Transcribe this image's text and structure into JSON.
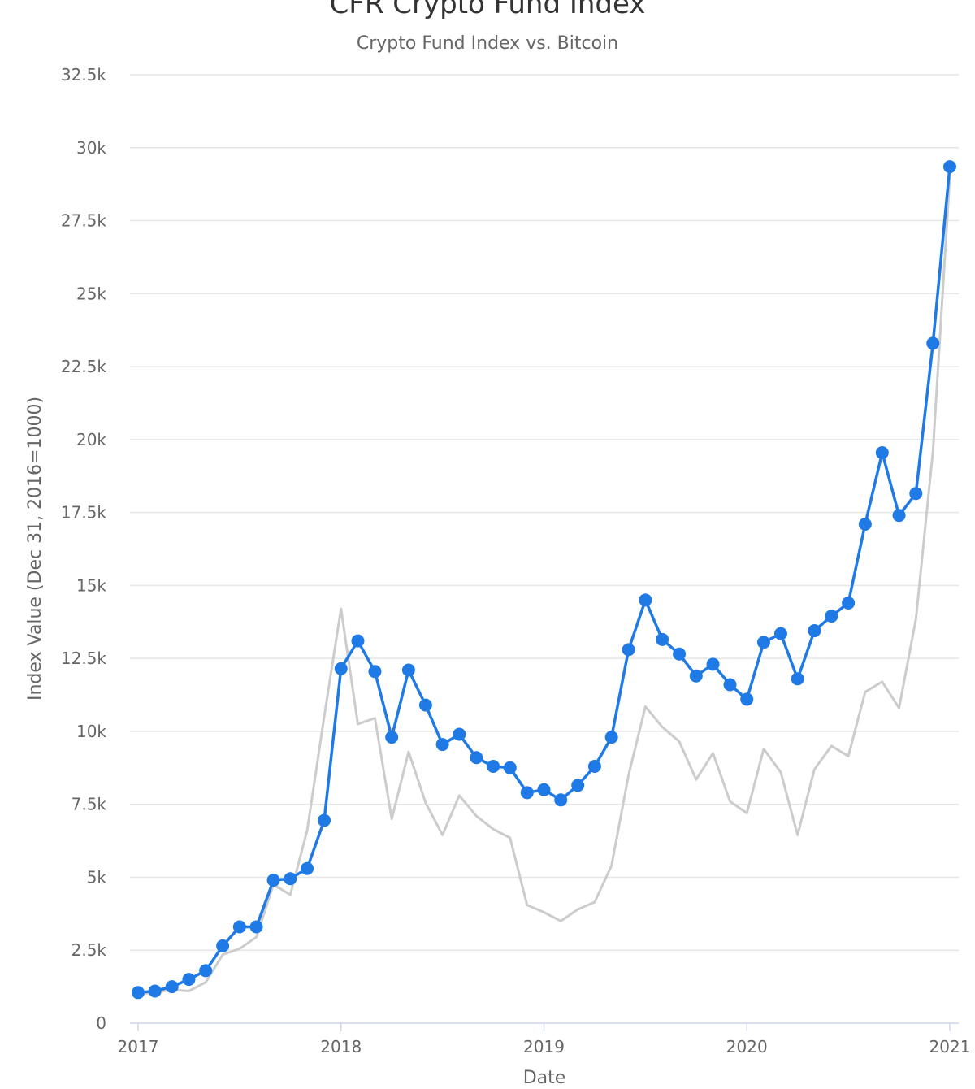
{
  "chart_data": {
    "type": "line",
    "title": "CFR Crypto Fund Index",
    "subtitle": "Crypto Fund Index vs. Bitcoin",
    "xlabel": "Date",
    "ylabel": "Index Value (Dec 31, 2016=1000)",
    "xlim": [
      2017,
      2021
    ],
    "ylim": [
      0,
      32500
    ],
    "x_ticks": [
      2017,
      2018,
      2019,
      2020,
      2021
    ],
    "y_ticks": [
      0,
      2500,
      5000,
      7500,
      10000,
      12500,
      15000,
      17500,
      20000,
      22500,
      25000,
      27500,
      30000,
      32500
    ],
    "y_tick_labels": [
      "0",
      "2.5k",
      "5k",
      "7.5k",
      "10k",
      "12.5k",
      "15k",
      "17.5k",
      "20k",
      "22.5k",
      "25k",
      "27.5k",
      "30k",
      "32.5k"
    ],
    "grid": true,
    "legend": "none",
    "series": [
      {
        "color": "#1f7ae6",
        "markers": true,
        "x": [
          2017.0,
          2017.083,
          2017.167,
          2017.25,
          2017.333,
          2017.417,
          2017.5,
          2017.583,
          2017.667,
          2017.75,
          2017.833,
          2017.917,
          2018.0,
          2018.083,
          2018.167,
          2018.25,
          2018.333,
          2018.417,
          2018.5,
          2018.583,
          2018.667,
          2018.75,
          2018.833,
          2018.917,
          2019.0,
          2019.083,
          2019.167,
          2019.25,
          2019.333,
          2019.417,
          2019.5,
          2019.583,
          2019.667,
          2019.75,
          2019.833,
          2019.917,
          2020.0,
          2020.083,
          2020.167,
          2020.25,
          2020.333,
          2020.417,
          2020.5,
          2020.583,
          2020.667,
          2020.75,
          2020.833,
          2020.917,
          2021.0
        ],
        "values": [
          1050,
          1100,
          1250,
          1500,
          1800,
          2650,
          3300,
          3300,
          4900,
          4950,
          5300,
          6950,
          12150,
          13100,
          12050,
          9800,
          12100,
          10900,
          9550,
          9900,
          9100,
          8800,
          8750,
          7900,
          8000,
          7650,
          8150,
          8800,
          9800,
          12800,
          14500,
          13150,
          12650,
          11900,
          12300,
          11600,
          11100,
          13050,
          13350,
          11800,
          13450,
          13950,
          14400,
          17100,
          19550,
          17400,
          18150,
          23300,
          29350
        ]
      },
      {
        "color": "#cccccc",
        "markers": false,
        "x": [
          2017.0,
          2017.083,
          2017.167,
          2017.25,
          2017.333,
          2017.417,
          2017.5,
          2017.583,
          2017.667,
          2017.75,
          2017.833,
          2017.917,
          2018.0,
          2018.083,
          2018.167,
          2018.25,
          2018.333,
          2018.417,
          2018.5,
          2018.583,
          2018.667,
          2018.75,
          2018.833,
          2018.917,
          2019.0,
          2019.083,
          2019.167,
          2019.25,
          2019.333,
          2019.417,
          2019.5,
          2019.583,
          2019.667,
          2019.75,
          2019.833,
          2019.917,
          2020.0,
          2020.083,
          2020.167,
          2020.25,
          2020.333,
          2020.417,
          2020.5,
          2020.583,
          2020.667,
          2020.75,
          2020.833,
          2020.917,
          2021.0
        ],
        "values": [
          1000,
          1050,
          1150,
          1100,
          1400,
          2350,
          2550,
          2950,
          4750,
          4400,
          6600,
          10500,
          14200,
          10250,
          10450,
          7000,
          9300,
          7550,
          6450,
          7800,
          7100,
          6650,
          6350,
          4050,
          3800,
          3500,
          3900,
          4150,
          5400,
          8500,
          10850,
          10150,
          9650,
          8350,
          9250,
          7600,
          7200,
          9400,
          8600,
          6450,
          8700,
          9500,
          9150,
          11350,
          11700,
          10800,
          13850,
          19600,
          29000
        ]
      }
    ]
  }
}
